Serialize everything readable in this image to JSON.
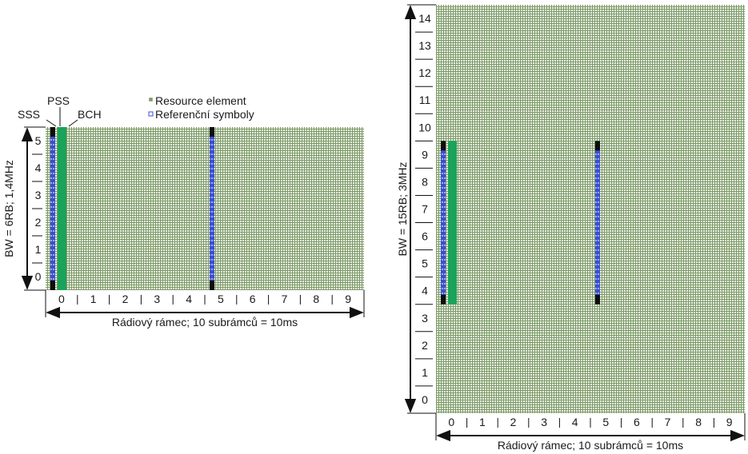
{
  "colors": {
    "grid_bg": "#7d9a6a",
    "grid_line": "#eef3e6",
    "signal_black": "#0d0d0d",
    "bch_green": "#1aa35a",
    "reference_blue": "#3b4fd0",
    "arrow": "#111111"
  },
  "labels": {
    "sss": "SSS",
    "pss": "PSS",
    "bch": "BCH"
  },
  "legend": {
    "items": [
      {
        "label": "Resource element",
        "icon": "resource-element-square"
      },
      {
        "label": "Referenční symboly",
        "icon": "reference-symbol-square"
      }
    ]
  },
  "diagrams": [
    {
      "id": "bw-1-4mhz",
      "y_axis_label": "BW = 6RB; 1,4MHz",
      "x_axis_label": "Rádiový rámec; 10 subrámců = 10ms",
      "subframes": [
        "0",
        "1",
        "2",
        "3",
        "4",
        "5",
        "6",
        "7",
        "8",
        "9"
      ],
      "resource_blocks": [
        "0",
        "1",
        "2",
        "3",
        "4",
        "5"
      ],
      "signal_subframes": [
        0,
        5
      ],
      "signal_rb_span": [
        0,
        6
      ],
      "bch_rb_span": [
        0,
        6
      ],
      "show_labels": true
    },
    {
      "id": "bw-3mhz",
      "y_axis_label": "BW = 15RB; 3MHz",
      "x_axis_label": "Rádiový rámec; 10 subrámců = 10ms",
      "subframes": [
        "0",
        "1",
        "2",
        "3",
        "4",
        "5",
        "6",
        "7",
        "8",
        "9"
      ],
      "resource_blocks": [
        "0",
        "1",
        "2",
        "3",
        "4",
        "5",
        "6",
        "7",
        "8",
        "9",
        "10",
        "11",
        "12",
        "13",
        "14"
      ],
      "signal_subframes": [
        0,
        5
      ],
      "signal_rb_span": [
        4,
        10
      ],
      "bch_rb_span": [
        4,
        10
      ],
      "show_labels": false
    }
  ]
}
